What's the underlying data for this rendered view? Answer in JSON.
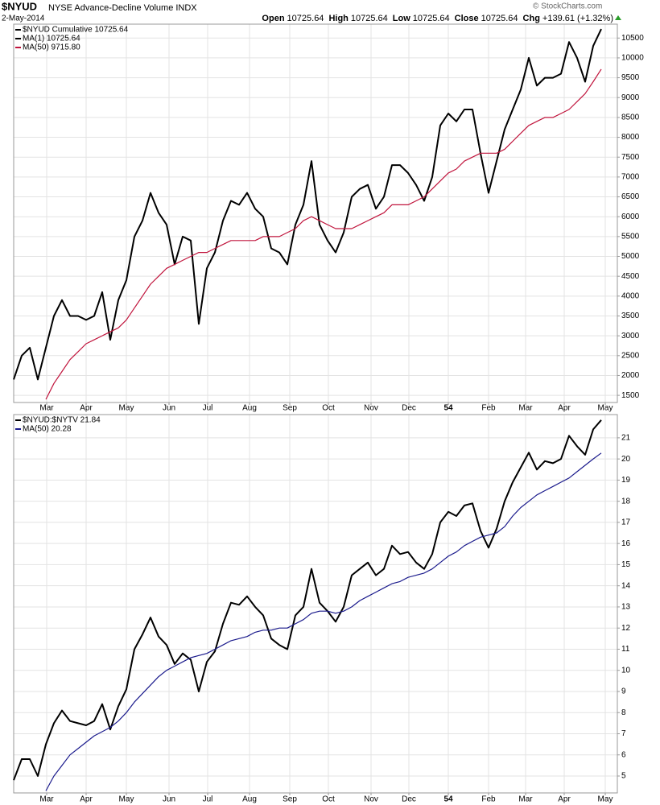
{
  "header": {
    "symbol": "$NYUD",
    "name": "NYSE Advance-Decline Volume INDX",
    "date": "2-May-2014",
    "quote": [
      {
        "label": "Open",
        "value": "10725.64"
      },
      {
        "label": "High",
        "value": "10725.64"
      },
      {
        "label": "Low",
        "value": "10725.64"
      },
      {
        "label": "Close",
        "value": "10725.64"
      },
      {
        "label": "Chg",
        "value": "+139.61 (+1.32%)"
      }
    ],
    "copyright": "© StockCharts.com"
  },
  "chart_data": [
    {
      "type": "line",
      "grid": true,
      "ma1_label": "MA(1) 10725.64",
      "xlim": [
        0,
        75
      ],
      "xticks": [
        {
          "value": 4.1,
          "label": "Mar"
        },
        {
          "value": 9,
          "label": "Apr"
        },
        {
          "value": 14,
          "label": "May"
        },
        {
          "value": 19.3,
          "label": "Jun"
        },
        {
          "value": 24.1,
          "label": "Jul"
        },
        {
          "value": 29.3,
          "label": "Aug"
        },
        {
          "value": 34.3,
          "label": "Sep"
        },
        {
          "value": 39.1,
          "label": "Oct"
        },
        {
          "value": 44.4,
          "label": "Nov"
        },
        {
          "value": 49.1,
          "label": "Dec"
        },
        54,
        {
          "value": 59,
          "label": "Feb"
        },
        {
          "value": 63.6,
          "label": "Mar"
        },
        {
          "value": 68.4,
          "label": "Apr"
        },
        {
          "value": 73.5,
          "label": "May"
        }
      ],
      "ylim": [
        1320,
        10850
      ],
      "yticks": [
        1500,
        2000,
        2500,
        3000,
        3500,
        4000,
        4500,
        5000,
        5500,
        6000,
        6500,
        7000,
        7500,
        8000,
        8500,
        9000,
        9500,
        10000,
        10500
      ],
      "series": [
        {
          "name": "$NYUD Cumulative 10725.64",
          "color": "#000000",
          "values": [
            1900,
            2500,
            2700,
            1900,
            2700,
            3500,
            3900,
            3500,
            3500,
            3400,
            3500,
            4100,
            2900,
            3900,
            4400,
            5500,
            5900,
            6600,
            6100,
            5800,
            4800,
            5500,
            5400,
            3300,
            4700,
            5100,
            5900,
            6400,
            6300,
            6600,
            6200,
            6000,
            5200,
            5100,
            4800,
            5800,
            6300,
            7400,
            5800,
            5400,
            5100,
            5600,
            6500,
            6700,
            6800,
            6200,
            6500,
            7300,
            7300,
            7100,
            6800,
            6400,
            7000,
            8300,
            8600,
            8400,
            8700,
            8700,
            7600,
            6600,
            7400,
            8200,
            8700,
            9200,
            10000,
            9300,
            9500,
            9500,
            9600,
            10400,
            10000,
            9400,
            10300,
            10725.64
          ]
        },
        {
          "name": "MA(50) 9715.80",
          "color": "#c0143c",
          "values": [
            null,
            null,
            null,
            null,
            1400,
            1800,
            2100,
            2400,
            2600,
            2800,
            2900,
            3000,
            3100,
            3200,
            3400,
            3700,
            4000,
            4300,
            4500,
            4700,
            4800,
            4900,
            5000,
            5100,
            5100,
            5200,
            5300,
            5400,
            5400,
            5400,
            5400,
            5500,
            5500,
            5500,
            5600,
            5700,
            5900,
            6000,
            5900,
            5800,
            5700,
            5700,
            5700,
            5800,
            5900,
            6000,
            6100,
            6300,
            6300,
            6300,
            6400,
            6500,
            6700,
            6900,
            7100,
            7200,
            7400,
            7500,
            7600,
            7600,
            7600,
            7700,
            7900,
            8100,
            8300,
            8400,
            8500,
            8500,
            8600,
            8700,
            8900,
            9100,
            9400,
            9715.8
          ]
        }
      ]
    },
    {
      "type": "line",
      "grid": true,
      "xlim": [
        0,
        75
      ],
      "xticks": [
        {
          "value": 4.1,
          "label": "Mar"
        },
        {
          "value": 9,
          "label": "Apr"
        },
        {
          "value": 14,
          "label": "May"
        },
        {
          "value": 19.3,
          "label": "Jun"
        },
        {
          "value": 24.1,
          "label": "Jul"
        },
        {
          "value": 29.3,
          "label": "Aug"
        },
        {
          "value": 34.3,
          "label": "Sep"
        },
        {
          "value": 39.1,
          "label": "Oct"
        },
        {
          "value": 44.4,
          "label": "Nov"
        },
        {
          "value": 49.1,
          "label": "Dec"
        },
        54,
        {
          "value": 59,
          "label": "Feb"
        },
        {
          "value": 63.6,
          "label": "Mar"
        },
        {
          "value": 68.4,
          "label": "Apr"
        },
        {
          "value": 73.5,
          "label": "May"
        }
      ],
      "ylim": [
        4.2,
        22.1
      ],
      "yticks": [
        5,
        6,
        7,
        8,
        9,
        10,
        11,
        12,
        13,
        14,
        15,
        16,
        17,
        18,
        19,
        20,
        21
      ],
      "series": [
        {
          "name": "$NYUD:$NYTV 21.84",
          "color": "#000000",
          "values": [
            4.8,
            5.8,
            5.8,
            5.0,
            6.5,
            7.5,
            8.1,
            7.6,
            7.5,
            7.4,
            7.6,
            8.4,
            7.2,
            8.3,
            9.1,
            11.0,
            11.7,
            12.5,
            11.6,
            11.2,
            10.3,
            10.8,
            10.5,
            9.0,
            10.4,
            10.9,
            12.2,
            13.2,
            13.1,
            13.5,
            13.0,
            12.6,
            11.5,
            11.2,
            11.0,
            12.6,
            13.0,
            14.8,
            13.2,
            12.8,
            12.3,
            13.0,
            14.5,
            14.8,
            15.1,
            14.5,
            14.8,
            15.9,
            15.5,
            15.6,
            15.1,
            14.8,
            15.5,
            17.0,
            17.5,
            17.3,
            17.8,
            17.9,
            16.6,
            15.8,
            16.7,
            18.0,
            18.9,
            19.6,
            20.3,
            19.5,
            19.9,
            19.8,
            20.0,
            21.1,
            20.6,
            20.2,
            21.4,
            21.84
          ]
        },
        {
          "name": "MA(50) 20.28",
          "color": "#1a1a8c",
          "values": [
            null,
            null,
            null,
            null,
            4.3,
            5.0,
            5.5,
            6.0,
            6.3,
            6.6,
            6.9,
            7.1,
            7.3,
            7.6,
            8.0,
            8.5,
            8.9,
            9.3,
            9.7,
            10.0,
            10.2,
            10.4,
            10.6,
            10.7,
            10.8,
            11.0,
            11.2,
            11.4,
            11.5,
            11.6,
            11.8,
            11.9,
            11.9,
            12.0,
            12.0,
            12.2,
            12.4,
            12.7,
            12.8,
            12.8,
            12.7,
            12.8,
            13.0,
            13.3,
            13.5,
            13.7,
            13.9,
            14.1,
            14.2,
            14.4,
            14.5,
            14.6,
            14.8,
            15.1,
            15.4,
            15.6,
            15.9,
            16.1,
            16.3,
            16.4,
            16.5,
            16.8,
            17.3,
            17.7,
            18.0,
            18.3,
            18.5,
            18.7,
            18.9,
            19.1,
            19.4,
            19.7,
            20.0,
            20.28
          ]
        }
      ]
    }
  ]
}
